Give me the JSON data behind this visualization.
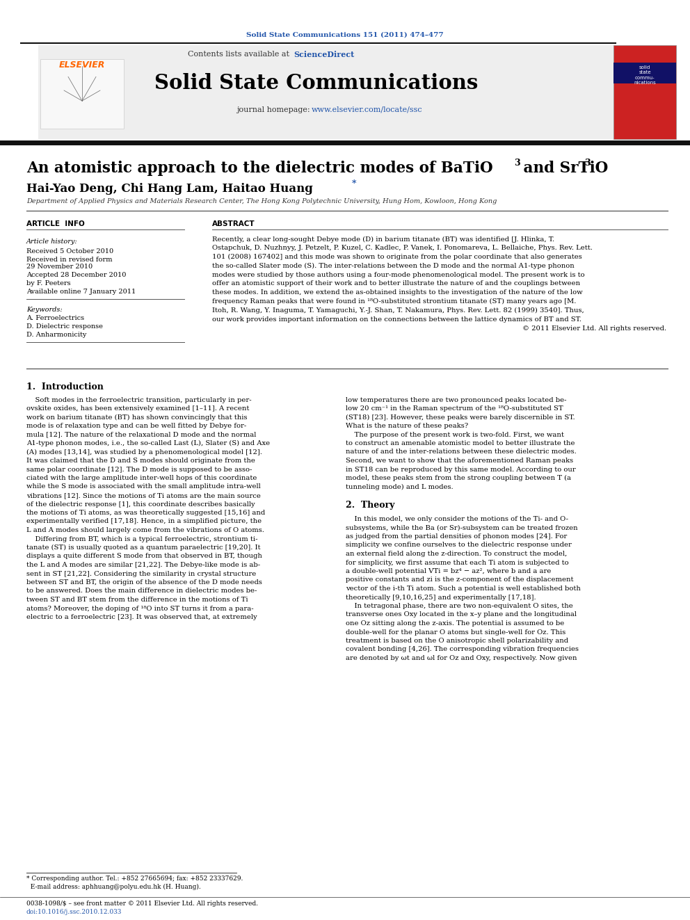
{
  "journal_ref": "Solid State Communications 151 (2011) 474–477",
  "journal_name": "Solid State Communications",
  "contents_text": "Contents lists available at ScienceDirect",
  "journal_homepage": "journal homepage: www.elsevier.com/locate/ssc",
  "title_main": "An atomistic approach to the dielectric modes of BaTiO",
  "title_and": " and SrTiO",
  "authors": "Hai-Yao Deng, Chi Hang Lam, Haitao Huang",
  "affiliation": "Department of Applied Physics and Materials Research Center, The Hong Kong Polytechnic University, Hung Hom, Kowloon, Hong Kong",
  "article_info_title": "ARTICLE  INFO",
  "abstract_title": "ABSTRACT",
  "article_history_label": "Article history:",
  "received1": "Received 5 October 2010",
  "received2": "Received in revised form",
  "received2b": "29 November 2010",
  "accepted": "Accepted 28 December 2010",
  "by": "by F. Peeters",
  "available": "Available online 7 January 2011",
  "keywords_label": "Keywords:",
  "kw1": "A. Ferroelectrics",
  "kw2": "D. Dielectric response",
  "kw3": "D. Anharmonicity",
  "intro_title": "1.  Introduction",
  "theory_title": "2.  Theory",
  "footnote1": "* Corresponding author. Tel.: +852 27665694; fax: +852 23337629.",
  "footnote2": "  E-mail address: aphhuang@polyu.edu.hk (H. Huang).",
  "footer1": "0038-1098/$ – see front matter © 2011 Elsevier Ltd. All rights reserved.",
  "footer2": "doi:10.1016/j.ssc.2010.12.033",
  "bg_color": "#ffffff",
  "link_color": "#2255aa",
  "elsevier_orange": "#FF6600"
}
